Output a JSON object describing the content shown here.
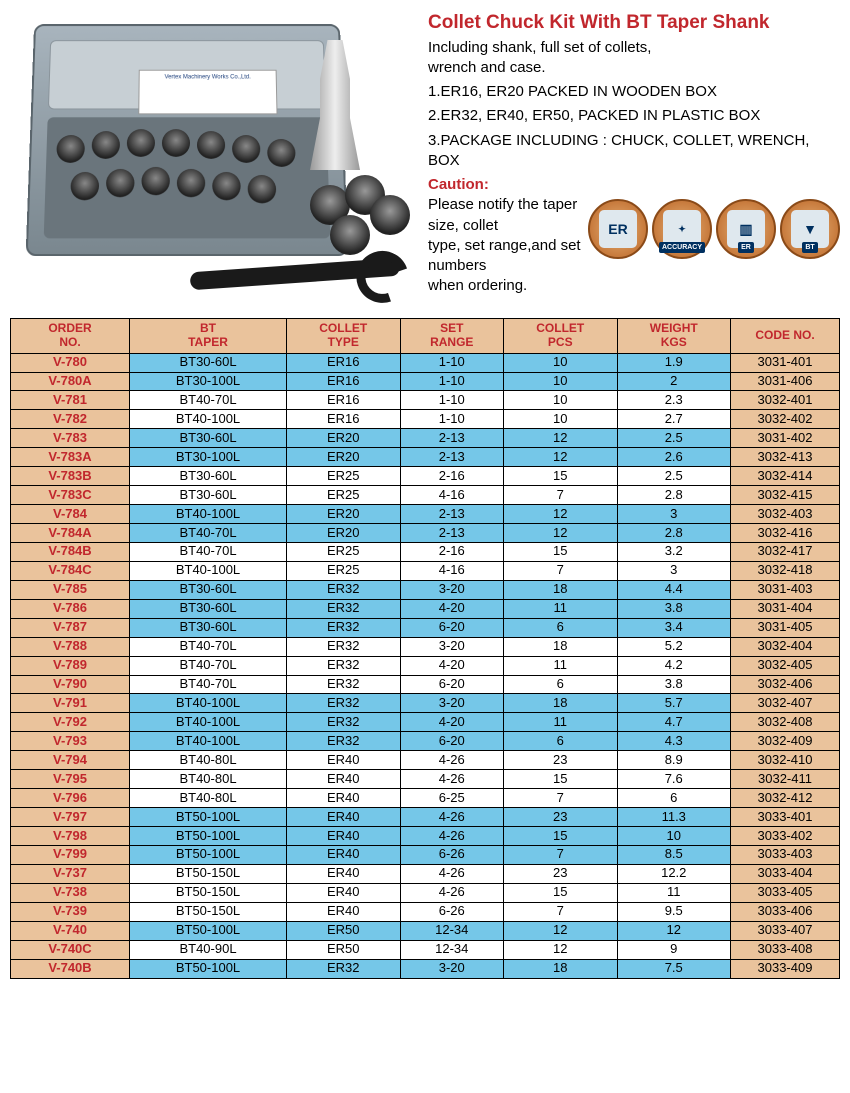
{
  "header": {
    "title": "Collet Chuck Kit With BT Taper Shank",
    "subtitle1": "Including shank, full set of collets,",
    "subtitle2": "wrench and case.",
    "line1": "1.ER16, ER20 PACKED IN WOODEN BOX",
    "line2": "2.ER32, ER40, ER50, PACKED IN PLASTIC   BOX",
    "line3": "3.PACKAGE INCLUDING : CHUCK, COLLET, WRENCH, BOX",
    "caution_label": "Caution:",
    "caution1": "Please notify the taper size, collet",
    "caution2": "type, set range,and set numbers",
    "caution3": "when ordering.",
    "case_label": "Vertex Machinery Works Co.,Ltd."
  },
  "badges": {
    "b1": "ER",
    "b2_sub": "ACCURACY",
    "b3_sub": "ER",
    "b4_sub": "BT"
  },
  "columns": {
    "c0a": "ORDER",
    "c0b": "NO.",
    "c1a": "BT",
    "c1b": "TAPER",
    "c2a": "COLLET",
    "c2b": "TYPE",
    "c3a": "SET",
    "c3b": "RANGE",
    "c4a": "COLLET",
    "c4b": "PCS",
    "c5a": "WEIGHT",
    "c5b": "KGS",
    "c6": "CODE NO."
  },
  "rows": [
    {
      "order": "V-780",
      "taper": "BT30-60L",
      "type": "ER16",
      "range": "1-10",
      "pcs": "10",
      "kgs": "1.9",
      "code": "3031-401",
      "band": "blue"
    },
    {
      "order": "V-780A",
      "taper": "BT30-100L",
      "type": "ER16",
      "range": "1-10",
      "pcs": "10",
      "kgs": "2",
      "code": "3031-406",
      "band": "blue"
    },
    {
      "order": "V-781",
      "taper": "BT40-70L",
      "type": "ER16",
      "range": "1-10",
      "pcs": "10",
      "kgs": "2.3",
      "code": "3032-401",
      "band": "white"
    },
    {
      "order": "V-782",
      "taper": "BT40-100L",
      "type": "ER16",
      "range": "1-10",
      "pcs": "10",
      "kgs": "2.7",
      "code": "3032-402",
      "band": "white"
    },
    {
      "order": "V-783",
      "taper": "BT30-60L",
      "type": "ER20",
      "range": "2-13",
      "pcs": "12",
      "kgs": "2.5",
      "code": "3031-402",
      "band": "blue"
    },
    {
      "order": "V-783A",
      "taper": "BT30-100L",
      "type": "ER20",
      "range": "2-13",
      "pcs": "12",
      "kgs": "2.6",
      "code": "3032-413",
      "band": "blue"
    },
    {
      "order": "V-783B",
      "taper": "BT30-60L",
      "type": "ER25",
      "range": "2-16",
      "pcs": "15",
      "kgs": "2.5",
      "code": "3032-414",
      "band": "white"
    },
    {
      "order": "V-783C",
      "taper": "BT30-60L",
      "type": "ER25",
      "range": "4-16",
      "pcs": "7",
      "kgs": "2.8",
      "code": "3032-415",
      "band": "white"
    },
    {
      "order": "V-784",
      "taper": "BT40-100L",
      "type": "ER20",
      "range": "2-13",
      "pcs": "12",
      "kgs": "3",
      "code": "3032-403",
      "band": "blue"
    },
    {
      "order": "V-784A",
      "taper": "BT40-70L",
      "type": "ER20",
      "range": "2-13",
      "pcs": "12",
      "kgs": "2.8",
      "code": "3032-416",
      "band": "blue"
    },
    {
      "order": "V-784B",
      "taper": "BT40-70L",
      "type": "ER25",
      "range": "2-16",
      "pcs": "15",
      "kgs": "3.2",
      "code": "3032-417",
      "band": "white"
    },
    {
      "order": "V-784C",
      "taper": "BT40-100L",
      "type": "ER25",
      "range": "4-16",
      "pcs": "7",
      "kgs": "3",
      "code": "3032-418",
      "band": "white"
    },
    {
      "order": "V-785",
      "taper": "BT30-60L",
      "type": "ER32",
      "range": "3-20",
      "pcs": "18",
      "kgs": "4.4",
      "code": "3031-403",
      "band": "blue"
    },
    {
      "order": "V-786",
      "taper": "BT30-60L",
      "type": "ER32",
      "range": "4-20",
      "pcs": "11",
      "kgs": "3.8",
      "code": "3031-404",
      "band": "blue"
    },
    {
      "order": "V-787",
      "taper": "BT30-60L",
      "type": "ER32",
      "range": "6-20",
      "pcs": "6",
      "kgs": "3.4",
      "code": "3031-405",
      "band": "blue"
    },
    {
      "order": "V-788",
      "taper": "BT40-70L",
      "type": "ER32",
      "range": "3-20",
      "pcs": "18",
      "kgs": "5.2",
      "code": "3032-404",
      "band": "white"
    },
    {
      "order": "V-789",
      "taper": "BT40-70L",
      "type": "ER32",
      "range": "4-20",
      "pcs": "11",
      "kgs": "4.2",
      "code": "3032-405",
      "band": "white"
    },
    {
      "order": "V-790",
      "taper": "BT40-70L",
      "type": "ER32",
      "range": "6-20",
      "pcs": "6",
      "kgs": "3.8",
      "code": "3032-406",
      "band": "white"
    },
    {
      "order": "V-791",
      "taper": "BT40-100L",
      "type": "ER32",
      "range": "3-20",
      "pcs": "18",
      "kgs": "5.7",
      "code": "3032-407",
      "band": "blue"
    },
    {
      "order": "V-792",
      "taper": "BT40-100L",
      "type": "ER32",
      "range": "4-20",
      "pcs": "11",
      "kgs": "4.7",
      "code": "3032-408",
      "band": "blue"
    },
    {
      "order": "V-793",
      "taper": "BT40-100L",
      "type": "ER32",
      "range": "6-20",
      "pcs": "6",
      "kgs": "4.3",
      "code": "3032-409",
      "band": "blue"
    },
    {
      "order": "V-794",
      "taper": "BT40-80L",
      "type": "ER40",
      "range": "4-26",
      "pcs": "23",
      "kgs": "8.9",
      "code": "3032-410",
      "band": "white"
    },
    {
      "order": "V-795",
      "taper": "BT40-80L",
      "type": "ER40",
      "range": "4-26",
      "pcs": "15",
      "kgs": "7.6",
      "code": "3032-411",
      "band": "white"
    },
    {
      "order": "V-796",
      "taper": "BT40-80L",
      "type": "ER40",
      "range": "6-25",
      "pcs": "7",
      "kgs": "6",
      "code": "3032-412",
      "band": "white"
    },
    {
      "order": "V-797",
      "taper": "BT50-100L",
      "type": "ER40",
      "range": "4-26",
      "pcs": "23",
      "kgs": "11.3",
      "code": "3033-401",
      "band": "blue"
    },
    {
      "order": "V-798",
      "taper": "BT50-100L",
      "type": "ER40",
      "range": "4-26",
      "pcs": "15",
      "kgs": "10",
      "code": "3033-402",
      "band": "blue"
    },
    {
      "order": "V-799",
      "taper": "BT50-100L",
      "type": "ER40",
      "range": "6-26",
      "pcs": "7",
      "kgs": "8.5",
      "code": "3033-403",
      "band": "blue"
    },
    {
      "order": "V-737",
      "taper": "BT50-150L",
      "type": "ER40",
      "range": "4-26",
      "pcs": "23",
      "kgs": "12.2",
      "code": "3033-404",
      "band": "white"
    },
    {
      "order": "V-738",
      "taper": "BT50-150L",
      "type": "ER40",
      "range": "4-26",
      "pcs": "15",
      "kgs": "11",
      "code": "3033-405",
      "band": "white"
    },
    {
      "order": "V-739",
      "taper": "BT50-150L",
      "type": "ER40",
      "range": "6-26",
      "pcs": "7",
      "kgs": "9.5",
      "code": "3033-406",
      "band": "white"
    },
    {
      "order": "V-740",
      "taper": "BT50-100L",
      "type": "ER50",
      "range": "12-34",
      "pcs": "12",
      "kgs": "12",
      "code": "3033-407",
      "band": "blue"
    },
    {
      "order": "V-740C",
      "taper": "BT40-90L",
      "type": "ER50",
      "range": "12-34",
      "pcs": "12",
      "kgs": "9",
      "code": "3033-408",
      "band": "white"
    },
    {
      "order": "V-740B",
      "taper": "BT50-100L",
      "type": "ER32",
      "range": "3-20",
      "pcs": "18",
      "kgs": "7.5",
      "code": "3033-409",
      "band": "blue"
    }
  ]
}
